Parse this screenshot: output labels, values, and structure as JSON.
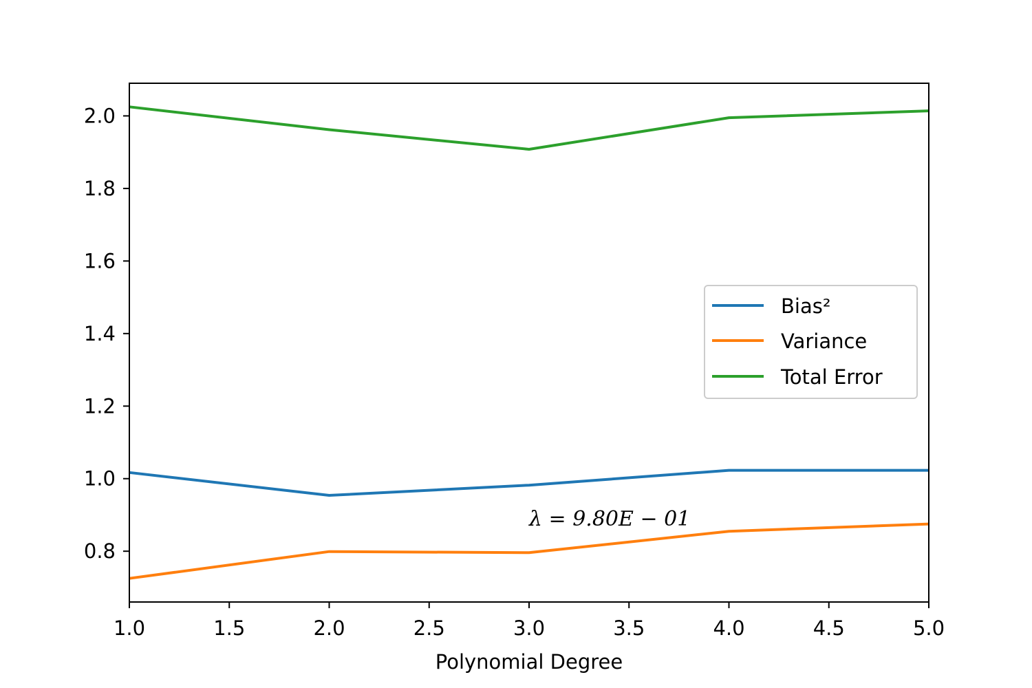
{
  "chart_data": {
    "type": "line",
    "x": [
      1,
      2,
      3,
      4,
      5
    ],
    "series": [
      {
        "name": "Bias²",
        "color": "#1f77b4",
        "values": [
          1.017,
          0.954,
          0.982,
          1.023,
          1.023
        ]
      },
      {
        "name": "Variance",
        "color": "#ff7f0e",
        "values": [
          0.725,
          0.799,
          0.796,
          0.855,
          0.875
        ]
      },
      {
        "name": "Total Error",
        "color": "#2ca02c",
        "values": [
          2.025,
          1.962,
          1.908,
          1.995,
          2.014
        ]
      }
    ],
    "title": "",
    "xlabel": "Polynomial Degree",
    "ylabel": "",
    "xlim": [
      1.0,
      5.0
    ],
    "ylim": [
      0.66,
      2.09
    ],
    "xticks": [
      "1.0",
      "1.5",
      "2.0",
      "2.5",
      "3.0",
      "3.5",
      "4.0",
      "4.5",
      "5.0"
    ],
    "yticks": [
      "0.8",
      "1.0",
      "1.2",
      "1.4",
      "1.6",
      "1.8",
      "2.0"
    ],
    "annotation": "λ = 9.80E − 01",
    "legend_position": "center-right",
    "grid": false
  }
}
